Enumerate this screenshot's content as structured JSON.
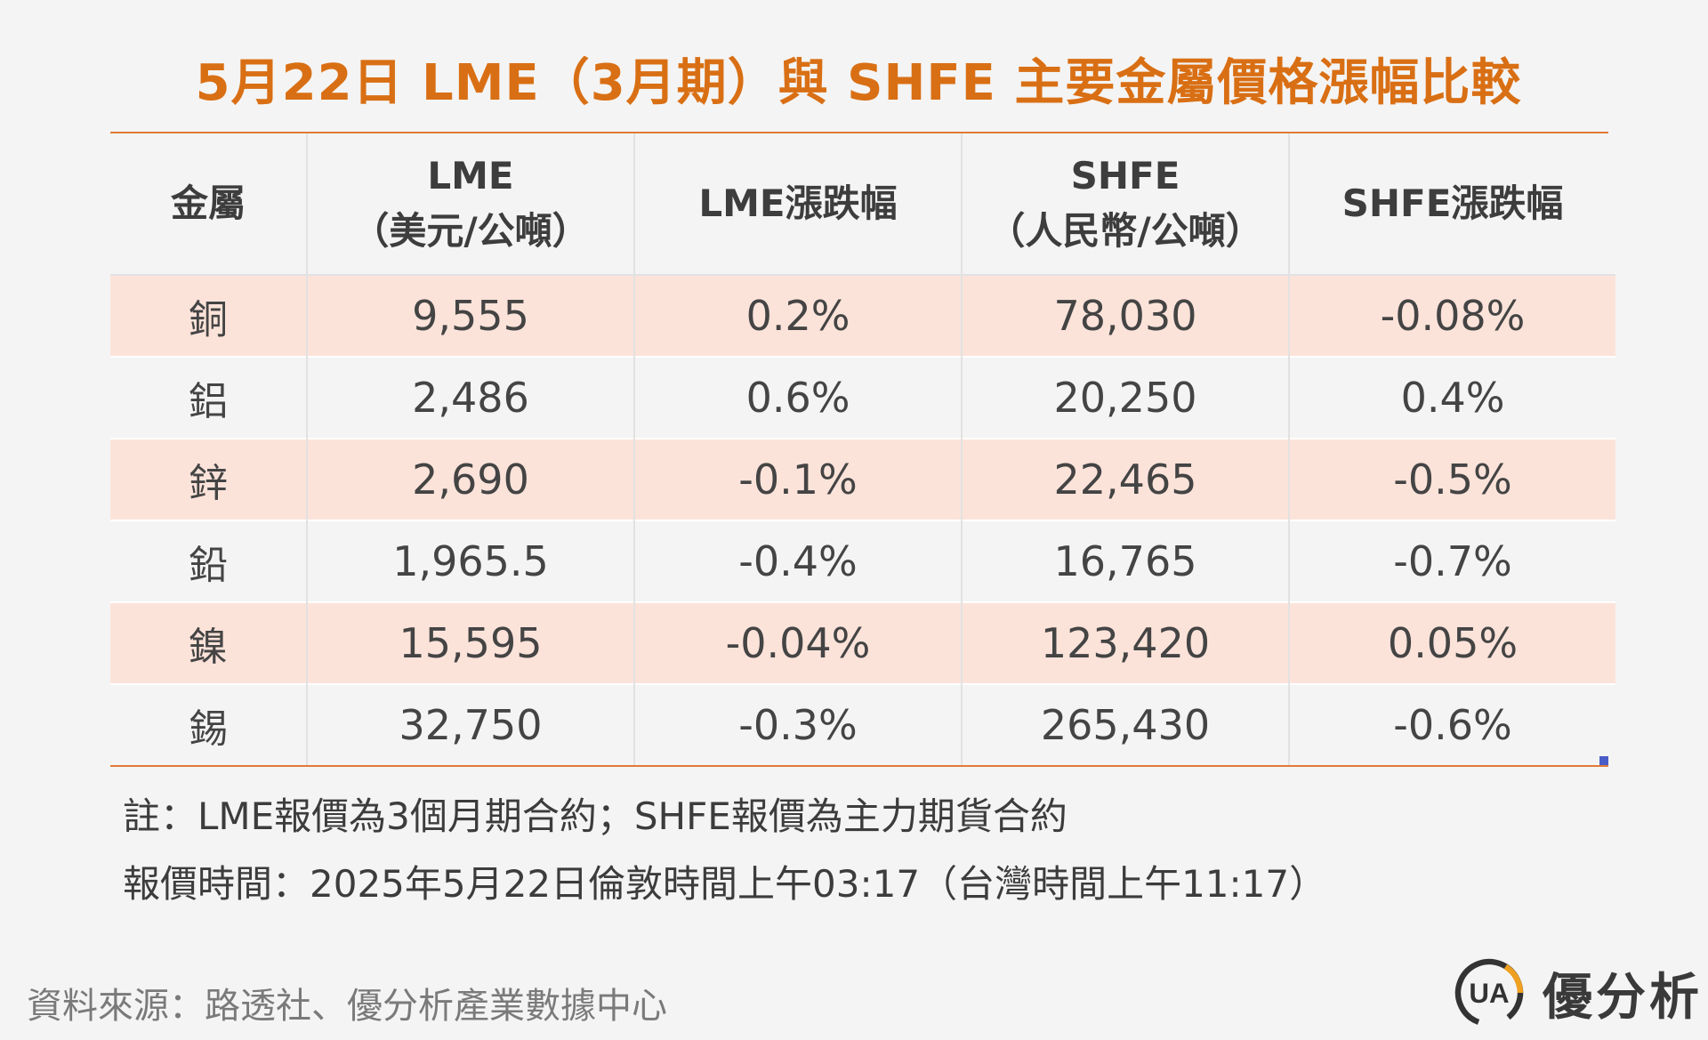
{
  "title": "5月22日 LME（3月期）與 SHFE 主要金屬價格漲幅比較",
  "chart_data": {
    "type": "table",
    "columns": [
      {
        "line1": "金屬",
        "line2": ""
      },
      {
        "line1": "LME",
        "line2": "（美元/公噸）"
      },
      {
        "line1": "LME漲跌幅",
        "line2": ""
      },
      {
        "line1": "SHFE",
        "line2": "（人民幣/公噸）"
      },
      {
        "line1": "SHFE漲跌幅",
        "line2": ""
      }
    ],
    "rows": [
      {
        "metal": "銅",
        "lme": "9,555",
        "lme_change": "0.2%",
        "shfe": "78,030",
        "shfe_change": "-0.08%"
      },
      {
        "metal": "鋁",
        "lme": "2,486",
        "lme_change": "0.6%",
        "shfe": "20,250",
        "shfe_change": "0.4%"
      },
      {
        "metal": "鋅",
        "lme": "2,690",
        "lme_change": "-0.1%",
        "shfe": "22,465",
        "shfe_change": "-0.5%"
      },
      {
        "metal": "鉛",
        "lme": "1,965.5",
        "lme_change": "-0.4%",
        "shfe": "16,765",
        "shfe_change": "-0.7%"
      },
      {
        "metal": "鎳",
        "lme": "15,595",
        "lme_change": "-0.04%",
        "shfe": "123,420",
        "shfe_change": "0.05%"
      },
      {
        "metal": "錫",
        "lme": "32,750",
        "lme_change": "-0.3%",
        "shfe": "265,430",
        "shfe_change": "-0.6%"
      }
    ]
  },
  "notes": {
    "contract": "註：LME報價為3個月期合約；SHFE報價為主力期貨合約",
    "time": "報價時間：2025年5月22日倫敦時間上午03:17（台灣時間上午11:17）"
  },
  "source": "資料來源：路透社、優分析產業數據中心",
  "brand": {
    "name": "優分析",
    "logo_text": "UA"
  },
  "colors": {
    "title": "#d96f14",
    "rule": "#e07a35",
    "row_shade": "#fce3da",
    "background": "#f4f4f4",
    "logo_ring": "#333333",
    "logo_accent": "#f0a020"
  }
}
